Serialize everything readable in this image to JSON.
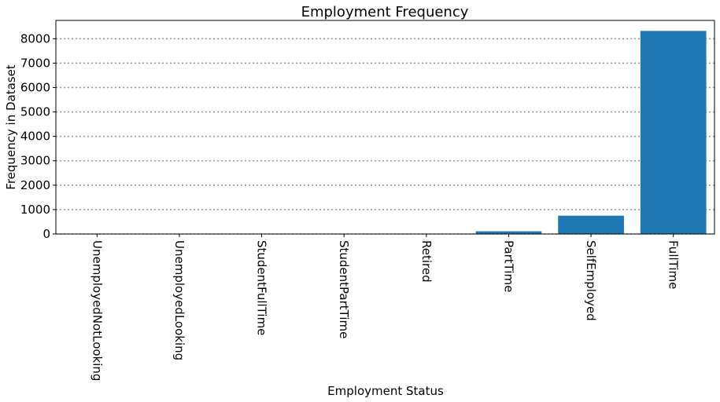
{
  "chart_data": {
    "type": "bar",
    "title": "Employment Frequency",
    "xlabel": "Employment Status",
    "ylabel": "Frequency in Dataset",
    "categories": [
      "UnemployedNotLooking",
      "UnemployedLooking",
      "StudentFullTime",
      "StudentPartTime",
      "Retired",
      "PartTime",
      "SelfEmployed",
      "FullTime"
    ],
    "values": [
      2,
      3,
      4,
      5,
      8,
      110,
      750,
      8320
    ],
    "ylim": [
      0,
      8750
    ],
    "yticks": [
      0,
      1000,
      2000,
      3000,
      4000,
      5000,
      6000,
      7000,
      8000
    ],
    "grid": "horizontal dotted",
    "bar_color": "#1f77b4",
    "grid_color": "#999999"
  }
}
